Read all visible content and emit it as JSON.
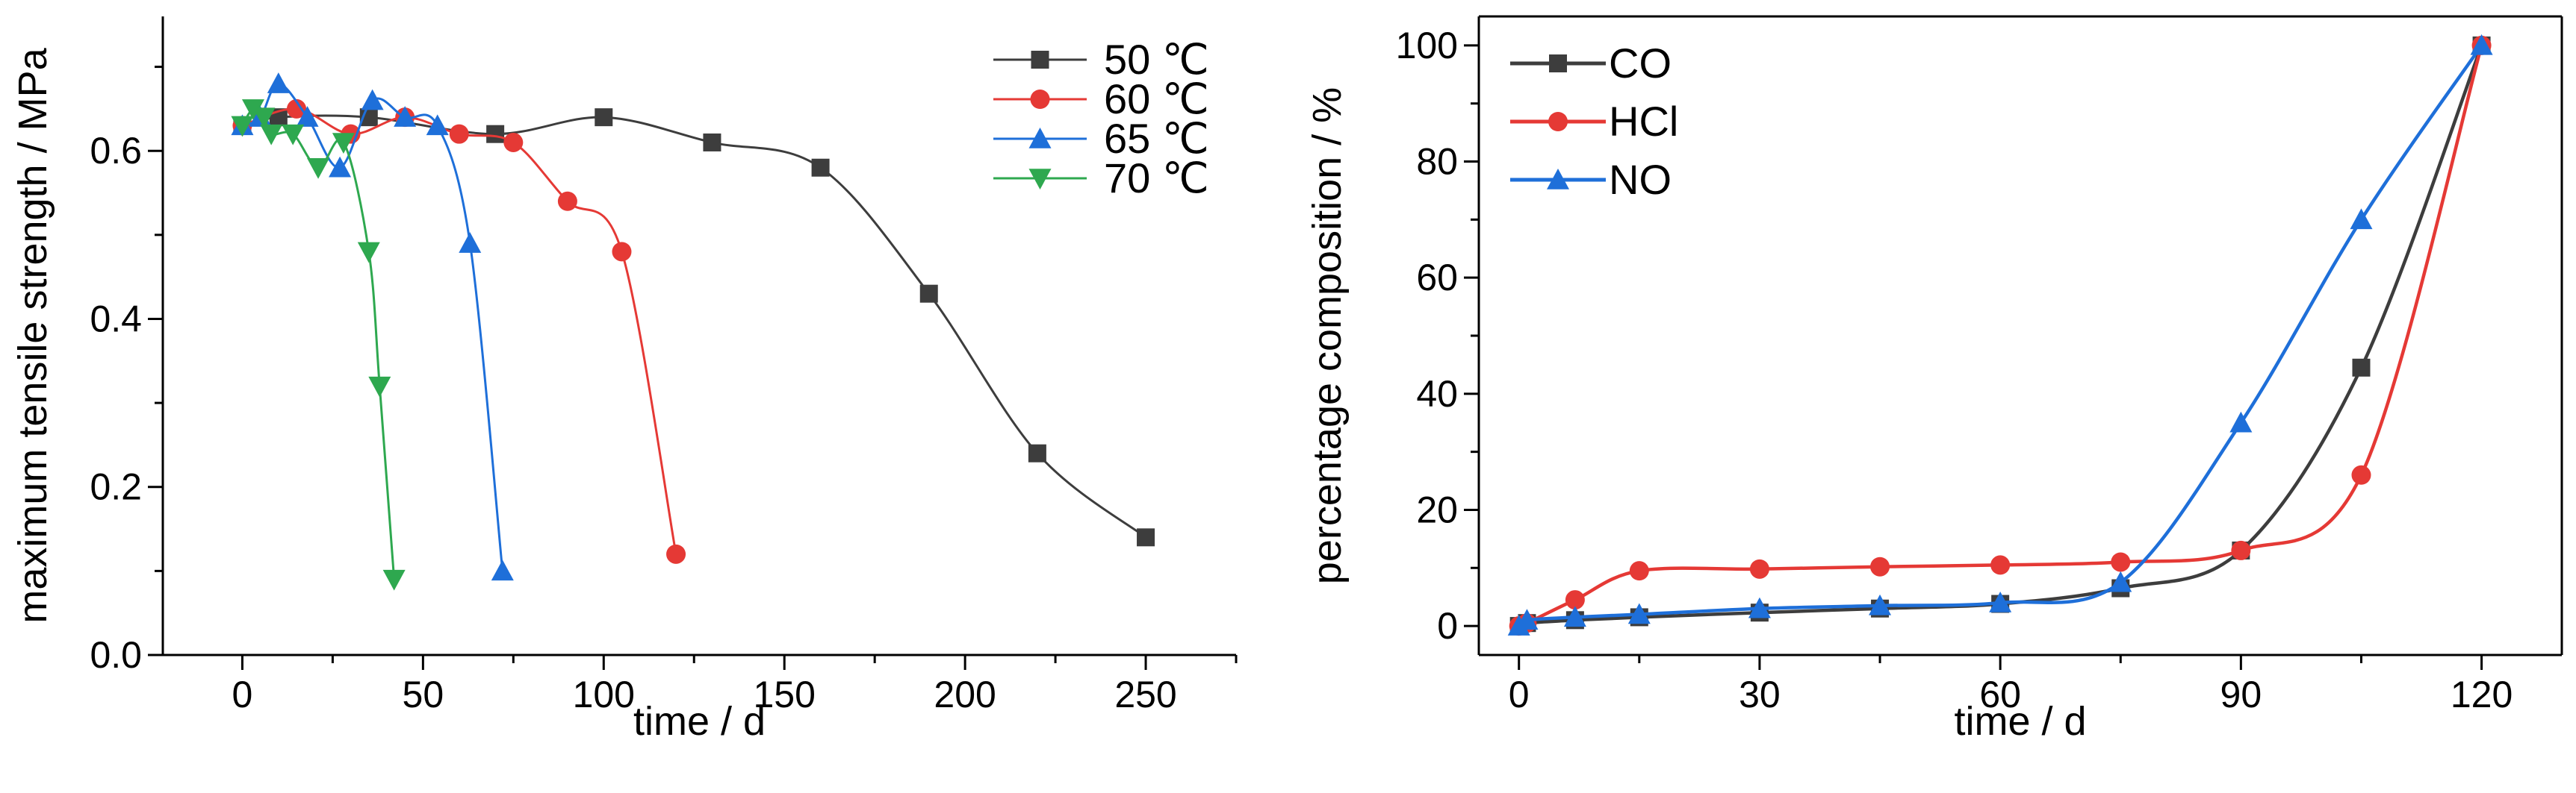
{
  "chart_data": [
    {
      "type": "line",
      "xlabel": "time / d",
      "ylabel": "maximum tensile strength / MPa",
      "xlim": [
        -22,
        275
      ],
      "ylim": [
        0.0,
        0.76
      ],
      "xticks": [
        0,
        50,
        100,
        150,
        200,
        250
      ],
      "yticks": [
        0.0,
        0.2,
        0.4,
        0.6
      ],
      "xtick_labels": [
        "0",
        "50",
        "100",
        "150",
        "200",
        "250"
      ],
      "ytick_labels": [
        "0.0",
        "0.2",
        "0.4",
        "0.6"
      ],
      "legend_position": "top-right",
      "grid": false,
      "series": [
        {
          "name": "50 ℃",
          "color": "#3d3d3d",
          "marker": "square",
          "x": [
            0,
            10,
            35,
            70,
            100,
            130,
            160,
            190,
            220,
            250
          ],
          "y": [
            0.63,
            0.64,
            0.64,
            0.62,
            0.64,
            0.61,
            0.58,
            0.43,
            0.24,
            0.14
          ]
        },
        {
          "name": "60 ℃",
          "color": "#e53935",
          "marker": "circle",
          "x": [
            0,
            15,
            30,
            45,
            60,
            75,
            90,
            105,
            120
          ],
          "y": [
            0.63,
            0.65,
            0.62,
            0.64,
            0.62,
            0.61,
            0.54,
            0.48,
            0.12
          ]
        },
        {
          "name": "65 ℃",
          "color": "#1e6fd9",
          "marker": "triangle-up",
          "x": [
            0,
            5,
            10,
            18,
            27,
            36,
            45,
            54,
            63,
            72
          ],
          "y": [
            0.63,
            0.64,
            0.68,
            0.64,
            0.58,
            0.66,
            0.64,
            0.63,
            0.49,
            0.1
          ]
        },
        {
          "name": "70 ℃",
          "color": "#2ea84f",
          "marker": "triangle-down",
          "x": [
            0,
            3,
            6,
            8,
            14,
            21,
            28,
            35,
            38,
            42
          ],
          "y": [
            0.63,
            0.65,
            0.64,
            0.62,
            0.62,
            0.58,
            0.61,
            0.48,
            0.32,
            0.09
          ]
        }
      ]
    },
    {
      "type": "line",
      "xlabel": "time / d",
      "ylabel": "percentage composition / %",
      "xlim": [
        -5,
        130
      ],
      "ylim": [
        -5,
        105
      ],
      "xticks": [
        0,
        30,
        60,
        90,
        120
      ],
      "yticks": [
        0,
        20,
        40,
        60,
        80,
        100
      ],
      "xtick_labels": [
        "0",
        "30",
        "60",
        "90",
        "120"
      ],
      "ytick_labels": [
        "0",
        "20",
        "40",
        "60",
        "80",
        "100"
      ],
      "legend_position": "top-left",
      "grid": false,
      "series": [
        {
          "name": "CO",
          "color": "#3d3d3d",
          "marker": "square",
          "x": [
            0,
            1,
            7,
            15,
            30,
            45,
            60,
            75,
            90,
            105,
            120
          ],
          "y": [
            0.0,
            0.5,
            1.0,
            1.5,
            2.3,
            3.0,
            3.8,
            6.5,
            13.0,
            44.5,
            100.0
          ]
        },
        {
          "name": "HCl",
          "color": "#e53935",
          "marker": "circle",
          "x": [
            0,
            1,
            7,
            15,
            30,
            45,
            60,
            75,
            90,
            105,
            120
          ],
          "y": [
            0.0,
            0.5,
            4.5,
            9.5,
            9.8,
            10.2,
            10.5,
            11.0,
            13.0,
            26.0,
            100.0
          ]
        },
        {
          "name": "NO",
          "color": "#1e6fd9",
          "marker": "triangle-up",
          "x": [
            0,
            1,
            7,
            15,
            30,
            45,
            60,
            75,
            90,
            105,
            120
          ],
          "y": [
            0.0,
            1.0,
            1.5,
            2.0,
            3.0,
            3.5,
            4.0,
            7.5,
            35.0,
            70.0,
            100.0
          ]
        }
      ]
    }
  ]
}
